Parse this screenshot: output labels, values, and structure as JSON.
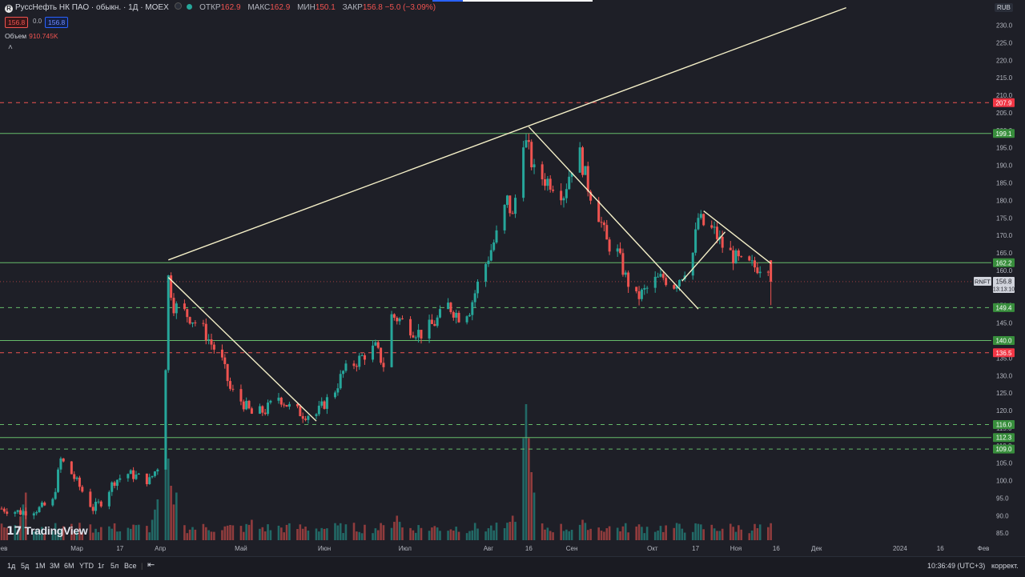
{
  "legend": {
    "title": "РуссНефть НК ПАО · обыкн. · 1Д · MOEX",
    "open_label": "ОТКР",
    "open": "162.9",
    "high_label": "МАКС",
    "high": "162.9",
    "low_label": "МИН",
    "low": "150.1",
    "close_label": "ЗАКР",
    "close": "156.8",
    "change": "−5.0 (−3.09%)",
    "bid": "156.8",
    "spread": "0.0",
    "ask": "156.8",
    "volume_label": "Объем",
    "volume": "910.745K"
  },
  "currency": "RUB",
  "symbol_tag": "RNFT",
  "last_price": "156.8",
  "countdown": "13:13:10",
  "watermark": "TradingView",
  "periods": [
    "1д",
    "5д",
    "1М",
    "3М",
    "6М",
    "YTD",
    "1г",
    "5л",
    "Все"
  ],
  "status": {
    "time": "10:36:49 (UTC+3)",
    "mode": "коррект."
  },
  "colors": {
    "up": "#26a69a",
    "down": "#ef5350",
    "green_line": "#66bb6a",
    "red_line": "#ef5350",
    "trend": "#f5f0c8",
    "bg": "#1e1f27"
  },
  "chart_data": {
    "type": "candlestick",
    "ylim": [
      83,
      234
    ],
    "y_ticks": [
      85,
      90,
      95,
      100,
      105,
      110,
      115,
      120,
      125,
      130,
      135,
      140,
      145,
      150,
      155,
      160,
      165,
      170,
      175,
      180,
      185,
      190,
      195,
      200,
      205,
      210,
      215,
      220,
      225,
      230
    ],
    "x_tick_labels": [
      "Фев",
      "Мар",
      "17",
      "Апр",
      "Май",
      "Июн",
      "Июл",
      "Авг",
      "16",
      "Сен",
      "Окт",
      "17",
      "Ноя",
      "16",
      "Дек",
      "2024",
      "16",
      "Фев"
    ],
    "x_tick_dates": [
      "2023-02-01",
      "2023-03-01",
      "2023-03-17",
      "2023-04-01",
      "2023-05-01",
      "2023-06-01",
      "2023-07-01",
      "2023-08-01",
      "2023-08-16",
      "2023-09-01",
      "2023-10-01",
      "2023-10-17",
      "2023-11-01",
      "2023-11-16",
      "2023-12-01",
      "2024-01-01",
      "2024-01-16",
      "2024-02-01"
    ],
    "horizontal_levels": [
      {
        "value": 207.9,
        "style": "dashed",
        "color": "red"
      },
      {
        "value": 199.1,
        "style": "solid",
        "color": "green"
      },
      {
        "value": 162.2,
        "style": "solid",
        "color": "green"
      },
      {
        "value": 149.4,
        "style": "dashed",
        "color": "green"
      },
      {
        "value": 140.0,
        "style": "solid",
        "color": "green"
      },
      {
        "value": 136.5,
        "style": "dashed",
        "color": "red"
      },
      {
        "value": 116.0,
        "style": "dashed",
        "color": "green"
      },
      {
        "value": 112.3,
        "style": "solid",
        "color": "green"
      },
      {
        "value": 109.0,
        "style": "dashed",
        "color": "green"
      }
    ],
    "last_price_line": 156.8,
    "trendlines": [
      {
        "from": [
          "2023-04-04",
          163
        ],
        "to": [
          "2023-12-12",
          235
        ]
      },
      {
        "from": [
          "2023-04-04",
          158
        ],
        "to": [
          "2023-05-29",
          117
        ]
      },
      {
        "from": [
          "2023-08-16",
          201
        ],
        "to": [
          "2023-10-18",
          149
        ]
      },
      {
        "from": [
          "2023-10-12",
          157
        ],
        "to": [
          "2023-10-28",
          171
        ]
      },
      {
        "from": [
          "2023-10-20",
          177
        ],
        "to": [
          "2023-11-14",
          162
        ]
      }
    ],
    "closes": [
      [
        "2023-02-01",
        92
      ],
      [
        "2023-02-08",
        91
      ],
      [
        "2023-02-15",
        92
      ],
      [
        "2023-02-20",
        94
      ],
      [
        "2023-02-23",
        106
      ],
      [
        "2023-02-27",
        102
      ],
      [
        "2023-03-03",
        97
      ],
      [
        "2023-03-07",
        92
      ],
      [
        "2023-03-10",
        94
      ],
      [
        "2023-03-15",
        100
      ],
      [
        "2023-03-20",
        102
      ],
      [
        "2023-03-24",
        101
      ],
      [
        "2023-03-28",
        100
      ],
      [
        "2023-03-31",
        104
      ],
      [
        "2023-04-03",
        133
      ],
      [
        "2023-04-04",
        158
      ],
      [
        "2023-04-06",
        150
      ],
      [
        "2023-04-10",
        148
      ],
      [
        "2023-04-13",
        146
      ],
      [
        "2023-04-17",
        143
      ],
      [
        "2023-04-20",
        139
      ],
      [
        "2023-04-24",
        134
      ],
      [
        "2023-04-27",
        126
      ],
      [
        "2023-05-02",
        122
      ],
      [
        "2023-05-05",
        119
      ],
      [
        "2023-05-10",
        120
      ],
      [
        "2023-05-15",
        124
      ],
      [
        "2023-05-19",
        121
      ],
      [
        "2023-05-24",
        119
      ],
      [
        "2023-05-29",
        119
      ],
      [
        "2023-06-01",
        122
      ],
      [
        "2023-06-05",
        126
      ],
      [
        "2023-06-08",
        131
      ],
      [
        "2023-06-13",
        134
      ],
      [
        "2023-06-16",
        136
      ],
      [
        "2023-06-20",
        138
      ],
      [
        "2023-06-23",
        133
      ],
      [
        "2023-06-26",
        147
      ],
      [
        "2023-06-29",
        146
      ],
      [
        "2023-07-04",
        143
      ],
      [
        "2023-07-07",
        142
      ],
      [
        "2023-07-12",
        145
      ],
      [
        "2023-07-17",
        150
      ],
      [
        "2023-07-21",
        147
      ],
      [
        "2023-07-25",
        149
      ],
      [
        "2023-07-28",
        156
      ],
      [
        "2023-08-01",
        164
      ],
      [
        "2023-08-04",
        170
      ],
      [
        "2023-08-08",
        180
      ],
      [
        "2023-08-10",
        175
      ],
      [
        "2023-08-14",
        198
      ],
      [
        "2023-08-16",
        194
      ],
      [
        "2023-08-18",
        188
      ],
      [
        "2023-08-22",
        186
      ],
      [
        "2023-08-25",
        185
      ],
      [
        "2023-08-29",
        182
      ],
      [
        "2023-09-01",
        190
      ],
      [
        "2023-09-04",
        193
      ],
      [
        "2023-09-07",
        184
      ],
      [
        "2023-09-11",
        176
      ],
      [
        "2023-09-14",
        168
      ],
      [
        "2023-09-18",
        165
      ],
      [
        "2023-09-21",
        158
      ],
      [
        "2023-09-25",
        152
      ],
      [
        "2023-09-28",
        154
      ],
      [
        "2023-10-02",
        157
      ],
      [
        "2023-10-05",
        158
      ],
      [
        "2023-10-09",
        156
      ],
      [
        "2023-10-12",
        159
      ],
      [
        "2023-10-16",
        165
      ],
      [
        "2023-10-18",
        175
      ],
      [
        "2023-10-20",
        173
      ],
      [
        "2023-10-24",
        171
      ],
      [
        "2023-10-27",
        167
      ],
      [
        "2023-10-31",
        164
      ],
      [
        "2023-11-03",
        162
      ],
      [
        "2023-11-08",
        161
      ],
      [
        "2023-11-13",
        162
      ],
      [
        "2023-11-14",
        156.8
      ]
    ],
    "volume_peaks": [
      [
        "2023-02-10",
        0.35
      ],
      [
        "2023-03-31",
        0.3
      ],
      [
        "2023-04-03",
        0.8
      ],
      [
        "2023-04-07",
        0.35
      ],
      [
        "2023-05-05",
        0.15
      ],
      [
        "2023-06-28",
        0.18
      ],
      [
        "2023-08-10",
        0.18
      ],
      [
        "2023-08-15",
        1.0
      ],
      [
        "2023-08-18",
        0.35
      ],
      [
        "2023-09-05",
        0.15
      ],
      [
        "2023-10-18",
        0.12
      ]
    ]
  }
}
